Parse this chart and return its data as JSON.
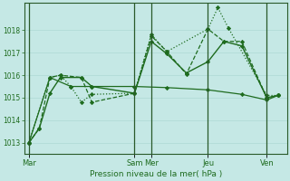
{
  "title": "Pression niveau de la mer( hPa )",
  "bg_color": "#c5e8e5",
  "grid_color": "#a8d5d0",
  "line_color": "#1e6b1e",
  "ylim": [
    1012.5,
    1019.2
  ],
  "yticks": [
    1013,
    1014,
    1015,
    1016,
    1017,
    1018
  ],
  "day_labels": [
    "Mar",
    "Sam",
    "Mer",
    "Jeu",
    "Ven"
  ],
  "day_positions": [
    0.0,
    3.52,
    4.08,
    5.97,
    7.93
  ],
  "xlim": [
    -0.15,
    8.6
  ],
  "lines": [
    {
      "x": [
        0.0,
        0.35,
        0.7,
        1.05,
        1.75,
        2.1,
        3.52,
        4.08,
        4.6,
        5.25,
        5.97,
        6.5,
        7.1,
        7.93,
        8.3
      ],
      "y": [
        1013.0,
        1013.65,
        1015.2,
        1015.9,
        1015.9,
        1015.5,
        1015.2,
        1017.5,
        1016.95,
        1016.1,
        1016.6,
        1017.5,
        1017.3,
        1015.0,
        1015.1
      ],
      "style": "-",
      "marker": "D",
      "markersize": 2.2,
      "linewidth": 1.0
    },
    {
      "x": [
        0.0,
        0.35,
        0.7,
        1.05,
        1.75,
        2.1,
        3.52,
        4.08,
        4.6,
        5.25,
        5.97,
        6.5,
        7.1,
        7.93,
        8.3
      ],
      "y": [
        1013.0,
        1013.65,
        1015.9,
        1016.0,
        1015.9,
        1014.8,
        1015.2,
        1017.75,
        1017.05,
        1016.05,
        1018.05,
        1017.5,
        1017.5,
        1015.0,
        1015.1
      ],
      "style": "--",
      "marker": "D",
      "markersize": 2.2,
      "linewidth": 0.9
    },
    {
      "x": [
        0.0,
        0.7,
        1.05,
        1.4,
        1.75,
        2.1,
        3.52,
        4.08,
        4.6,
        5.97,
        6.3,
        6.65,
        7.93,
        8.3
      ],
      "y": [
        1013.0,
        1015.9,
        1016.0,
        1015.5,
        1014.8,
        1015.15,
        1015.2,
        1017.8,
        1017.05,
        1018.05,
        1019.0,
        1018.1,
        1015.1,
        1015.1
      ],
      "style": ":",
      "marker": "D",
      "markersize": 2.2,
      "linewidth": 0.9
    },
    {
      "x": [
        0.0,
        0.7,
        1.4,
        2.1,
        3.52,
        4.6,
        5.97,
        7.1,
        7.93,
        8.3
      ],
      "y": [
        1013.0,
        1015.9,
        1015.5,
        1015.5,
        1015.5,
        1015.45,
        1015.35,
        1015.15,
        1014.9,
        1015.1
      ],
      "style": "-",
      "marker": "D",
      "markersize": 2.2,
      "linewidth": 0.9
    }
  ]
}
